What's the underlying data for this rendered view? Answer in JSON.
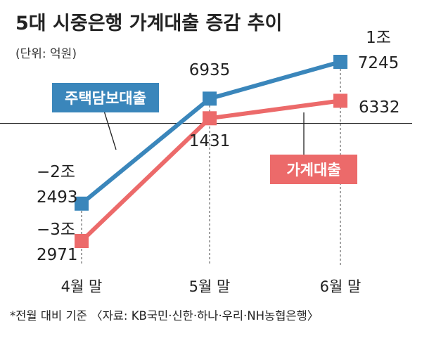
{
  "chart_data": {
    "type": "line",
    "title": "5대 시중은행 가계대출 증감 추이",
    "unit": "(단위: 억원)",
    "categories": [
      "4월 말",
      "5월 말",
      "6월 말"
    ],
    "series": [
      {
        "name": "주택담보대출",
        "color": "#3a86bb",
        "values": [
          -22493,
          6935,
          17245
        ],
        "labels": [
          [
            "−2조",
            "2493"
          ],
          [
            "6935"
          ],
          [
            "1조",
            "7245"
          ]
        ]
      },
      {
        "name": "가계대출",
        "color": "#ec6a6a",
        "values": [
          -32971,
          1431,
          6332
        ],
        "labels": [
          [
            "−3조",
            "2971"
          ],
          [
            "1431"
          ],
          [
            "6332"
          ]
        ]
      }
    ],
    "baseline": 0,
    "grid": false,
    "legend": "inline labels",
    "footnote": "*전월 대비 기준 〈자료: KB국민·신한·하나·우리·NH농협은행〉"
  }
}
